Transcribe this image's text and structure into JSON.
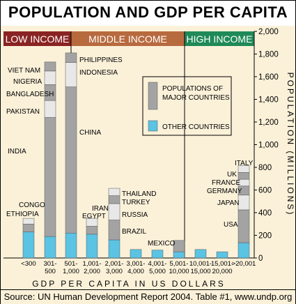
{
  "title": "POPULATION AND GDP PER CAPITA",
  "source": "Source: UN Human Development Report 2004. Table #1, www.undp.org",
  "colors": {
    "low_income": "#8a2323",
    "middle_income": "#b86a3f",
    "high_income": "#1f8a58",
    "major_countries": "#a3a3a3",
    "other_countries": "#5bc3e3",
    "background": "#fbf1d9",
    "segment_light": "#e8e8e8",
    "segment_dark": "#a3a3a3"
  },
  "chart_data": {
    "type": "bar",
    "stacked": true,
    "xlabel": "GDP PER CAPITA IN US DOLLARS",
    "ylabel": "POPULATION (MILLIONS)",
    "ylim": [
      0,
      2000
    ],
    "yticks": [
      0,
      200,
      400,
      600,
      800,
      1000,
      1200,
      1400,
      1600,
      1800,
      2000
    ],
    "categories": [
      "<300",
      "301-500",
      "501-1,000",
      "1,001-2,000",
      "2,001-3,000",
      "3,001-4,000",
      "4,001-5,000",
      "5,001-10,000",
      "10,001-15,000",
      "15,001-20,000",
      ">20,001"
    ],
    "category_labels": [
      [
        "<300"
      ],
      [
        "301-",
        "500"
      ],
      [
        "501-",
        "1,000"
      ],
      [
        "1,001-",
        "2,000"
      ],
      [
        "2,001-",
        "3,000"
      ],
      [
        "3,001-",
        "4,000"
      ],
      [
        "4,001-",
        "5,000"
      ],
      [
        "5,001-",
        "10,000"
      ],
      [
        "10,001-",
        "15,000"
      ],
      [
        "15,001-",
        "20,000"
      ],
      [
        ">20,001"
      ]
    ],
    "income_groups": [
      {
        "label": "LOW INCOME",
        "from": 0,
        "to": 1,
        "color_key": "low_income"
      },
      {
        "label": "MIDDLE INCOME",
        "from": 2,
        "to": 7,
        "color_key": "middle_income"
      },
      {
        "label": "HIGH INCOME",
        "from": 8,
        "to": 10,
        "color_key": "high_income"
      }
    ],
    "legend": [
      {
        "label": "POPULATIONS OF MAJOR COUNTRIES",
        "lines": [
          "POPULATIONS OF",
          "MAJOR COUNTRIES"
        ],
        "color_key": "major_countries"
      },
      {
        "label": "OTHER COUNTRIES",
        "lines": [
          "OTHER COUNTRIES"
        ],
        "color_key": "other_countries"
      }
    ],
    "bars": [
      {
        "category": "<300",
        "other": 230,
        "countries": [
          {
            "name": "ETHIOPIA",
            "value": 70
          },
          {
            "name": "CONGO",
            "value": 50
          }
        ]
      },
      {
        "category": "301-500",
        "other": 190,
        "countries": [
          {
            "name": "INDIA",
            "value": 1050
          },
          {
            "name": "PAKISTAN",
            "value": 150
          },
          {
            "name": "BANGLADESH",
            "value": 140
          },
          {
            "name": "NIGERIA",
            "value": 120
          },
          {
            "name": "VIET NAM",
            "value": 80
          }
        ]
      },
      {
        "category": "501-1,000",
        "other": 220,
        "countries": [
          {
            "name": "CHINA",
            "value": 1290
          },
          {
            "name": "INDONESIA",
            "value": 215
          },
          {
            "name": "PHILIPPINES",
            "value": 85
          }
        ]
      },
      {
        "category": "1,001-2,000",
        "other": 210,
        "countries": [
          {
            "name": "EGYPT",
            "value": 70
          },
          {
            "name": "IRAN",
            "value": 70
          }
        ]
      },
      {
        "category": "2,001-3,000",
        "other": 160,
        "countries": [
          {
            "name": "BRAZIL",
            "value": 175
          },
          {
            "name": "RUSSIA",
            "value": 145
          },
          {
            "name": "TURKEY",
            "value": 70
          },
          {
            "name": "THAILAND",
            "value": 65
          }
        ]
      },
      {
        "category": "3,001-4,000",
        "other": 75,
        "countries": []
      },
      {
        "category": "4,001-5,000",
        "other": 70,
        "countries": []
      },
      {
        "category": "5,001-10,000",
        "other": 55,
        "countries": [
          {
            "name": "MEXICO",
            "value": 100
          }
        ]
      },
      {
        "category": "10,001-15,000",
        "other": 75,
        "countries": []
      },
      {
        "category": "15,001-20,000",
        "other": 55,
        "countries": []
      },
      {
        "category": ">20,001",
        "other": 135,
        "countries": [
          {
            "name": "USA",
            "value": 290
          },
          {
            "name": "JAPAN",
            "value": 130
          },
          {
            "name": "GERMANY",
            "value": 80
          },
          {
            "name": "FRANCE",
            "value": 60
          },
          {
            "name": "UK",
            "value": 60
          },
          {
            "name": "ITALY",
            "value": 60
          }
        ]
      }
    ],
    "grid": false,
    "legend_position": "upper-middle"
  }
}
